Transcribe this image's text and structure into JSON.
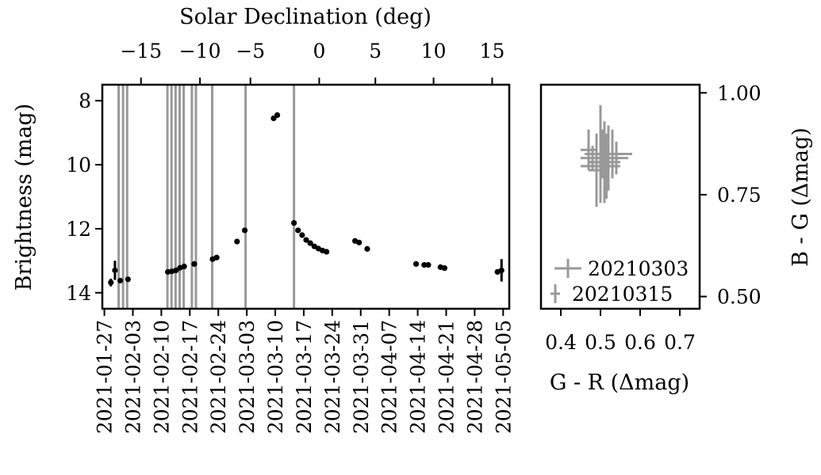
{
  "chart_data": [
    {
      "type": "scatter",
      "name": "light-curve",
      "xlabel": "",
      "ylabel": "Brightness (mag)",
      "top_xlabel": "Solar Declination (deg)",
      "x_ticks": [
        "2021-01-27",
        "2021-02-03",
        "2021-02-10",
        "2021-02-17",
        "2021-02-24",
        "2021-03-03",
        "2021-03-10",
        "2021-03-17",
        "2021-03-24",
        "2021-03-31",
        "2021-04-07",
        "2021-04-14",
        "2021-04-21",
        "2021-04-28",
        "2021-05-05"
      ],
      "xlim_days": [
        -0.5,
        99.5
      ],
      "ylim": [
        14.5,
        7.5
      ],
      "y_inverted": true,
      "y_ticks": [
        8,
        10,
        12,
        14
      ],
      "top_ticks": [
        {
          "label": "−15",
          "day": 9.0
        },
        {
          "label": "−10",
          "day": 23.5
        },
        {
          "label": "−5",
          "day": 35.9
        },
        {
          "label": "0",
          "day": 52.8
        },
        {
          "label": "5",
          "day": 66.6
        },
        {
          "label": "10",
          "day": 80.9
        },
        {
          "label": "15",
          "day": 95.3
        }
      ],
      "vertical_lines_days": [
        3.5,
        4.6,
        5.6,
        15.5,
        16.5,
        17.5,
        18.5,
        19.5,
        21.5,
        22.5,
        26.5,
        34.7,
        46.6
      ],
      "points": [
        {
          "day": 1.6,
          "mag": 13.68,
          "err": 0.12
        },
        {
          "day": 2.6,
          "mag": 13.3,
          "err": 0.3
        },
        {
          "day": 3.9,
          "mag": 13.62,
          "err": 0.03
        },
        {
          "day": 5.8,
          "mag": 13.58,
          "err": 0.03
        },
        {
          "day": 15.6,
          "mag": 13.35,
          "err": 0.03
        },
        {
          "day": 16.6,
          "mag": 13.33,
          "err": 0.03
        },
        {
          "day": 17.6,
          "mag": 13.3,
          "err": 0.03
        },
        {
          "day": 18.6,
          "mag": 13.22,
          "err": 0.03
        },
        {
          "day": 19.6,
          "mag": 13.18,
          "err": 0.03
        },
        {
          "day": 22.1,
          "mag": 13.1,
          "err": 0.03
        },
        {
          "day": 26.6,
          "mag": 12.95,
          "err": 0.03
        },
        {
          "day": 27.6,
          "mag": 12.9,
          "err": 0.03
        },
        {
          "day": 32.6,
          "mag": 12.4,
          "err": 0.03
        },
        {
          "day": 34.5,
          "mag": 12.05,
          "err": 0.03
        },
        {
          "day": 41.6,
          "mag": 8.55,
          "err": 0.03
        },
        {
          "day": 42.5,
          "mag": 8.45,
          "err": 0.03
        },
        {
          "day": 46.6,
          "mag": 11.82,
          "err": 0.03
        },
        {
          "day": 47.6,
          "mag": 12.05,
          "err": 0.03
        },
        {
          "day": 48.6,
          "mag": 12.2,
          "err": 0.03
        },
        {
          "day": 49.6,
          "mag": 12.35,
          "err": 0.03
        },
        {
          "day": 50.6,
          "mag": 12.45,
          "err": 0.03
        },
        {
          "day": 51.6,
          "mag": 12.55,
          "err": 0.03
        },
        {
          "day": 52.6,
          "mag": 12.62,
          "err": 0.03
        },
        {
          "day": 53.6,
          "mag": 12.68,
          "err": 0.03
        },
        {
          "day": 54.6,
          "mag": 12.72,
          "err": 0.03
        },
        {
          "day": 61.6,
          "mag": 12.38,
          "err": 0.03
        },
        {
          "day": 62.6,
          "mag": 12.43,
          "err": 0.03
        },
        {
          "day": 64.6,
          "mag": 12.63,
          "err": 0.03
        },
        {
          "day": 76.6,
          "mag": 13.1,
          "err": 0.03
        },
        {
          "day": 78.6,
          "mag": 13.13,
          "err": 0.03
        },
        {
          "day": 79.6,
          "mag": 13.13,
          "err": 0.03
        },
        {
          "day": 82.6,
          "mag": 13.2,
          "err": 0.03
        },
        {
          "day": 83.6,
          "mag": 13.23,
          "err": 0.03
        },
        {
          "day": 96.6,
          "mag": 13.35,
          "err": 0.03
        },
        {
          "day": 97.6,
          "mag": 13.3,
          "err": 0.35
        }
      ]
    },
    {
      "type": "scatter",
      "name": "color-color",
      "xlabel": "G - R (Δmag)",
      "ylabel": "B - G (Δmag)",
      "xlim": [
        0.35,
        0.75
      ],
      "ylim": [
        0.47,
        1.02
      ],
      "x_ticks": [
        "0.4",
        "0.5",
        "0.6",
        "0.7"
      ],
      "x_tick_values": [
        0.4,
        0.5,
        0.6,
        0.7
      ],
      "y_ticks": [
        "0.50",
        "0.75",
        "1.00"
      ],
      "y_tick_values": [
        0.5,
        0.75,
        1.0
      ],
      "legend_position": "lower-left",
      "legend": [
        "20210303",
        "20210315"
      ],
      "series_color": "#999999",
      "error_crosses": [
        {
          "x": 0.48,
          "y": 0.84,
          "xerr": 0.03,
          "yerr": 0.03
        },
        {
          "x": 0.5,
          "y": 0.82,
          "xerr": 0.05,
          "yerr": 0.05
        },
        {
          "x": 0.51,
          "y": 0.83,
          "xerr": 0.04,
          "yerr": 0.1
        },
        {
          "x": 0.52,
          "y": 0.84,
          "xerr": 0.03,
          "yerr": 0.08
        },
        {
          "x": 0.49,
          "y": 0.83,
          "xerr": 0.02,
          "yerr": 0.07
        },
        {
          "x": 0.53,
          "y": 0.85,
          "xerr": 0.05,
          "yerr": 0.06
        },
        {
          "x": 0.54,
          "y": 0.84,
          "xerr": 0.03,
          "yerr": 0.04
        },
        {
          "x": 0.5,
          "y": 0.85,
          "xerr": 0.04,
          "yerr": 0.12
        },
        {
          "x": 0.505,
          "y": 0.85,
          "xerr": 0.04,
          "yerr": 0.06
        },
        {
          "x": 0.515,
          "y": 0.82,
          "xerr": 0.02,
          "yerr": 0.08
        },
        {
          "x": 0.47,
          "y": 0.86,
          "xerr": 0.02,
          "yerr": 0.05
        },
        {
          "x": 0.49,
          "y": 0.81,
          "xerr": 0.02,
          "yerr": 0.09
        },
        {
          "x": 0.51,
          "y": 0.8,
          "xerr": 0.01,
          "yerr": 0.07
        },
        {
          "x": 0.5,
          "y": 0.84,
          "xerr": 0.01,
          "yerr": 0.09
        }
      ]
    }
  ]
}
